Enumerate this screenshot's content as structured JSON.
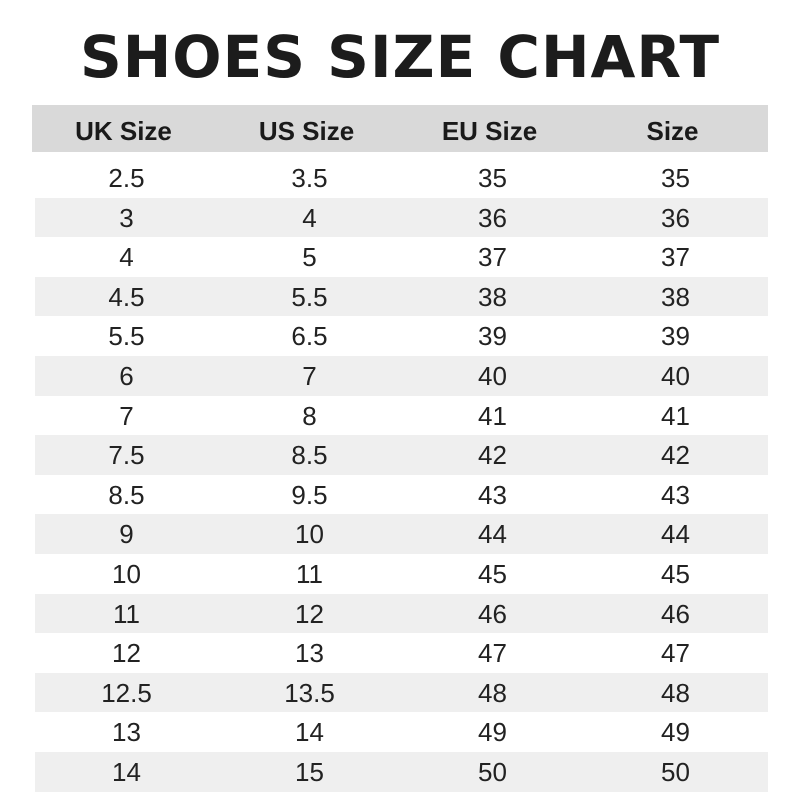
{
  "title": "SHOES SIZE CHART",
  "colors": {
    "header_bg": "#d9d9d9",
    "stripe_bg": "#efefef"
  },
  "headers": [
    "UK Size",
    "US Size",
    "EU Size",
    "Size"
  ],
  "rows": [
    [
      "2.5",
      "3.5",
      "35",
      "35"
    ],
    [
      "3",
      "4",
      "36",
      "36"
    ],
    [
      "4",
      "5",
      "37",
      "37"
    ],
    [
      "4.5",
      "5.5",
      "38",
      "38"
    ],
    [
      "5.5",
      "6.5",
      "39",
      "39"
    ],
    [
      "6",
      "7",
      "40",
      "40"
    ],
    [
      "7",
      "8",
      "41",
      "41"
    ],
    [
      "7.5",
      "8.5",
      "42",
      "42"
    ],
    [
      "8.5",
      "9.5",
      "43",
      "43"
    ],
    [
      "9",
      "10",
      "44",
      "44"
    ],
    [
      "10",
      "11",
      "45",
      "45"
    ],
    [
      "11",
      "12",
      "46",
      "46"
    ],
    [
      "12",
      "13",
      "47",
      "47"
    ],
    [
      "12.5",
      "13.5",
      "48",
      "48"
    ],
    [
      "13",
      "14",
      "49",
      "49"
    ],
    [
      "14",
      "15",
      "50",
      "50"
    ]
  ]
}
